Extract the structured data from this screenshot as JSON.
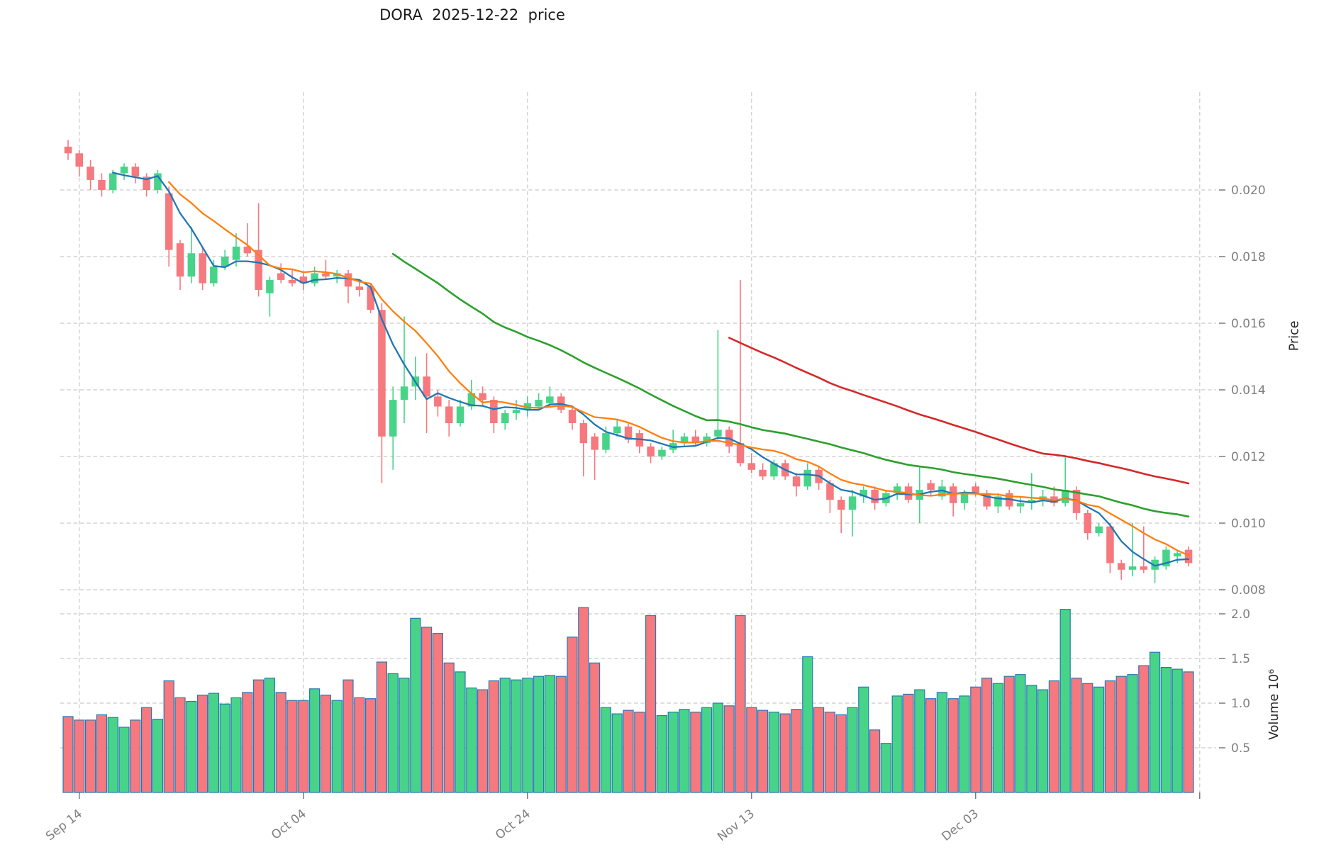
{
  "title": "DORA  2025-12-22  price",
  "chart_data": {
    "type": "candlestick",
    "title": "DORA  2025-12-22  price",
    "grid": true,
    "legend": null,
    "price_axis": {
      "label": "Price",
      "side": "right",
      "ticks": [
        "0.020",
        "0.018",
        "0.016",
        "0.014",
        "0.012",
        "0.010",
        "0.008"
      ],
      "tick_values": [
        0.02,
        0.018,
        0.016,
        0.014,
        0.012,
        0.01,
        0.008
      ]
    },
    "volume_axis": {
      "label": "Volume",
      "scale": "10⁶",
      "side": "right",
      "ticks": [
        "2.0",
        "1.5",
        "1.0",
        "0.5"
      ],
      "tick_values": [
        2.0,
        1.5,
        1.0,
        0.5
      ]
    },
    "x_axis": {
      "tick_labels": [
        "Sep 14",
        "Oct 04",
        "Oct 24",
        "Nov 13",
        "Dec 03"
      ],
      "tick_indices": [
        1,
        21,
        41,
        61,
        81
      ],
      "extra_unlabeled_tick_index": 101
    },
    "moving_averages": [
      {
        "name": "MA5",
        "window": 5,
        "color": "#1f77b4",
        "width": 2.3
      },
      {
        "name": "MA10",
        "window": 10,
        "color": "#ff7f0e",
        "width": 2.3
      },
      {
        "name": "MA30",
        "window": 30,
        "color": "#2ca02c",
        "width": 2.6
      },
      {
        "name": "MA60",
        "window": 60,
        "color": "#d62728",
        "width": 2.6
      }
    ],
    "colors": {
      "up": "#47d489",
      "down": "#f5797e",
      "volume_edge": "#2878b4",
      "grid": "#c9c9c9",
      "tick_label": "#7f7f7f",
      "tick_mark": "#666666",
      "title": "#1a1a1a"
    },
    "candles": [
      [
        "Sep 13",
        0.0213,
        0.0215,
        0.0209,
        0.0211,
        0.85
      ],
      [
        "Sep 14",
        0.0211,
        0.0212,
        0.0204,
        0.0207,
        0.81
      ],
      [
        "Sep 15",
        0.0207,
        0.0209,
        0.02,
        0.0203,
        0.81
      ],
      [
        "Sep 16",
        0.0203,
        0.0205,
        0.0198,
        0.02,
        0.87
      ],
      [
        "Sep 17",
        0.02,
        0.0206,
        0.0199,
        0.0205,
        0.84
      ],
      [
        "Sep 18",
        0.0205,
        0.0208,
        0.0203,
        0.0207,
        0.73
      ],
      [
        "Sep 19",
        0.0207,
        0.0208,
        0.0202,
        0.0204,
        0.81
      ],
      [
        "Sep 20",
        0.0204,
        0.0205,
        0.0198,
        0.02,
        0.95
      ],
      [
        "Sep 21",
        0.02,
        0.0206,
        0.0199,
        0.0205,
        0.82
      ],
      [
        "Sep 22",
        0.0199,
        0.0201,
        0.0177,
        0.0182,
        1.25
      ],
      [
        "Sep 23",
        0.0184,
        0.0185,
        0.017,
        0.0174,
        1.06
      ],
      [
        "Sep 24",
        0.0174,
        0.0189,
        0.0172,
        0.0181,
        1.02
      ],
      [
        "Sep 25",
        0.0181,
        0.0183,
        0.017,
        0.0172,
        1.09
      ],
      [
        "Sep 26",
        0.0172,
        0.0179,
        0.0171,
        0.0177,
        1.11
      ],
      [
        "Sep 27",
        0.0177,
        0.0182,
        0.0176,
        0.018,
        0.99
      ],
      [
        "Sep 28",
        0.0179,
        0.0187,
        0.0177,
        0.0183,
        1.06
      ],
      [
        "Sep 29",
        0.0183,
        0.019,
        0.018,
        0.0181,
        1.12
      ],
      [
        "Sep 30",
        0.0182,
        0.0196,
        0.0168,
        0.017,
        1.26
      ],
      [
        "Oct 01",
        0.0169,
        0.0174,
        0.0162,
        0.0173,
        1.28
      ],
      [
        "Oct 02",
        0.0175,
        0.0178,
        0.0172,
        0.0173,
        1.12
      ],
      [
        "Oct 03",
        0.0173,
        0.0176,
        0.0171,
        0.0172,
        1.03
      ],
      [
        "Oct 04",
        0.0174,
        0.0175,
        0.017,
        0.0172,
        1.03
      ],
      [
        "Oct 05",
        0.0172,
        0.0177,
        0.0171,
        0.0175,
        1.16
      ],
      [
        "Oct 06",
        0.0175,
        0.0179,
        0.0173,
        0.0174,
        1.09
      ],
      [
        "Oct 07",
        0.0174,
        0.0176,
        0.0172,
        0.0175,
        1.03
      ],
      [
        "Oct 08",
        0.0175,
        0.0176,
        0.0166,
        0.0171,
        1.26
      ],
      [
        "Oct 09",
        0.0171,
        0.0173,
        0.0168,
        0.017,
        1.06
      ],
      [
        "Oct 10",
        0.0171,
        0.0172,
        0.0163,
        0.0164,
        1.05
      ],
      [
        "Oct 11",
        0.0164,
        0.0166,
        0.0112,
        0.0126,
        1.46
      ],
      [
        "Oct 12",
        0.0126,
        0.0141,
        0.0116,
        0.0137,
        1.33
      ],
      [
        "Oct 13",
        0.0137,
        0.0162,
        0.013,
        0.0141,
        1.28
      ],
      [
        "Oct 14",
        0.0141,
        0.015,
        0.0137,
        0.0144,
        1.95
      ],
      [
        "Oct 15",
        0.0144,
        0.0151,
        0.0127,
        0.0138,
        1.85
      ],
      [
        "Oct 16",
        0.0138,
        0.014,
        0.0132,
        0.0135,
        1.78
      ],
      [
        "Oct 17",
        0.0135,
        0.0137,
        0.0126,
        0.013,
        1.45
      ],
      [
        "Oct 18",
        0.013,
        0.0137,
        0.0129,
        0.0135,
        1.35
      ],
      [
        "Oct 19",
        0.0135,
        0.0143,
        0.0134,
        0.0139,
        1.17
      ],
      [
        "Oct 20",
        0.0139,
        0.0141,
        0.0135,
        0.0137,
        1.15
      ],
      [
        "Oct 21",
        0.0137,
        0.0138,
        0.0127,
        0.013,
        1.25
      ],
      [
        "Oct 22",
        0.013,
        0.0134,
        0.0128,
        0.0133,
        1.28
      ],
      [
        "Oct 23",
        0.0133,
        0.0137,
        0.0131,
        0.0134,
        1.26
      ],
      [
        "Oct 24",
        0.0134,
        0.0138,
        0.0132,
        0.0136,
        1.28
      ],
      [
        "Oct 25",
        0.0135,
        0.0139,
        0.0134,
        0.0137,
        1.3
      ],
      [
        "Oct 26",
        0.0136,
        0.0141,
        0.0135,
        0.0138,
        1.31
      ],
      [
        "Oct 27",
        0.0138,
        0.0139,
        0.0133,
        0.0134,
        1.3
      ],
      [
        "Oct 28",
        0.0134,
        0.0135,
        0.0128,
        0.013,
        1.74
      ],
      [
        "Oct 29",
        0.013,
        0.0131,
        0.0114,
        0.0124,
        2.07
      ],
      [
        "Oct 30",
        0.0126,
        0.0127,
        0.0113,
        0.0122,
        1.45
      ],
      [
        "Oct 31",
        0.0122,
        0.0129,
        0.0121,
        0.0127,
        0.95
      ],
      [
        "Nov 01",
        0.0127,
        0.0131,
        0.0126,
        0.0129,
        0.88
      ],
      [
        "Nov 02",
        0.0129,
        0.013,
        0.0124,
        0.0125,
        0.92
      ],
      [
        "Nov 03",
        0.0127,
        0.0128,
        0.0121,
        0.0123,
        0.9
      ],
      [
        "Nov 04",
        0.0123,
        0.0124,
        0.0118,
        0.012,
        1.98
      ],
      [
        "Nov 05",
        0.012,
        0.0123,
        0.0119,
        0.0122,
        0.86
      ],
      [
        "Nov 06",
        0.0122,
        0.0128,
        0.0121,
        0.0124,
        0.9
      ],
      [
        "Nov 07",
        0.0124,
        0.0127,
        0.0123,
        0.0126,
        0.93
      ],
      [
        "Nov 08",
        0.0126,
        0.0128,
        0.0123,
        0.0124,
        0.9
      ],
      [
        "Nov 09",
        0.0124,
        0.0127,
        0.0123,
        0.0126,
        0.95
      ],
      [
        "Nov 10",
        0.0126,
        0.0158,
        0.0125,
        0.0128,
        1.0
      ],
      [
        "Nov 11",
        0.0128,
        0.0129,
        0.0121,
        0.0123,
        0.97
      ],
      [
        "Nov 12",
        0.0124,
        0.0173,
        0.0117,
        0.0118,
        1.98
      ],
      [
        "Nov 13",
        0.0118,
        0.0121,
        0.0115,
        0.0116,
        0.95
      ],
      [
        "Nov 14",
        0.0116,
        0.0118,
        0.0113,
        0.0114,
        0.92
      ],
      [
        "Nov 15",
        0.0114,
        0.0119,
        0.0113,
        0.0118,
        0.9
      ],
      [
        "Nov 16",
        0.0118,
        0.0119,
        0.0113,
        0.0114,
        0.88
      ],
      [
        "Nov 17",
        0.0114,
        0.0115,
        0.0108,
        0.0111,
        0.93
      ],
      [
        "Nov 18",
        0.0111,
        0.0118,
        0.011,
        0.0116,
        1.52
      ],
      [
        "Nov 19",
        0.0116,
        0.0117,
        0.011,
        0.0112,
        0.95
      ],
      [
        "Nov 20",
        0.0112,
        0.0113,
        0.0103,
        0.0107,
        0.9
      ],
      [
        "Nov 21",
        0.0107,
        0.0108,
        0.0097,
        0.0104,
        0.87
      ],
      [
        "Nov 22",
        0.0104,
        0.011,
        0.0096,
        0.0108,
        0.95
      ],
      [
        "Nov 23",
        0.0108,
        0.0111,
        0.0106,
        0.011,
        1.18
      ],
      [
        "Nov 24",
        0.011,
        0.0111,
        0.0104,
        0.0106,
        0.7
      ],
      [
        "Nov 25",
        0.0106,
        0.011,
        0.0105,
        0.0109,
        0.55
      ],
      [
        "Nov 26",
        0.0109,
        0.0112,
        0.0107,
        0.0111,
        1.08
      ],
      [
        "Nov 27",
        0.0111,
        0.0112,
        0.0106,
        0.0107,
        1.1
      ],
      [
        "Nov 28",
        0.0107,
        0.0117,
        0.01,
        0.011,
        1.15
      ],
      [
        "Nov 29",
        0.0112,
        0.0113,
        0.0108,
        0.011,
        1.05
      ],
      [
        "Nov 30",
        0.0108,
        0.0113,
        0.0107,
        0.0111,
        1.12
      ],
      [
        "Dec 01",
        0.0111,
        0.0112,
        0.0102,
        0.0106,
        1.05
      ],
      [
        "Dec 02",
        0.0106,
        0.011,
        0.0104,
        0.0109,
        1.08
      ],
      [
        "Dec 03",
        0.0111,
        0.0112,
        0.0108,
        0.0109,
        1.18
      ],
      [
        "Dec 04",
        0.0109,
        0.011,
        0.0104,
        0.0105,
        1.28
      ],
      [
        "Dec 05",
        0.0105,
        0.0109,
        0.0103,
        0.0108,
        1.22
      ],
      [
        "Dec 06",
        0.0109,
        0.011,
        0.0104,
        0.0105,
        1.3
      ],
      [
        "Dec 07",
        0.0105,
        0.0108,
        0.0103,
        0.0106,
        1.32
      ],
      [
        "Dec 08",
        0.0106,
        0.0115,
        0.0104,
        0.0107,
        1.2
      ],
      [
        "Dec 09",
        0.0107,
        0.011,
        0.0105,
        0.0108,
        1.15
      ],
      [
        "Dec 10",
        0.0108,
        0.0111,
        0.0105,
        0.0106,
        1.25
      ],
      [
        "Dec 11",
        0.0106,
        0.012,
        0.0105,
        0.011,
        2.05
      ],
      [
        "Dec 12",
        0.011,
        0.0111,
        0.0101,
        0.0103,
        1.28
      ],
      [
        "Dec 13",
        0.0103,
        0.0104,
        0.0095,
        0.0097,
        1.22
      ],
      [
        "Dec 14",
        0.0097,
        0.01,
        0.0096,
        0.0099,
        1.18
      ],
      [
        "Dec 15",
        0.0099,
        0.01,
        0.0085,
        0.0088,
        1.25
      ],
      [
        "Dec 16",
        0.0088,
        0.0089,
        0.0083,
        0.0086,
        1.3
      ],
      [
        "Dec 17",
        0.0086,
        0.01,
        0.0084,
        0.0087,
        1.32
      ],
      [
        "Dec 18",
        0.0087,
        0.0099,
        0.0085,
        0.0086,
        1.42
      ],
      [
        "Dec 19",
        0.0086,
        0.009,
        0.0082,
        0.0089,
        1.57
      ],
      [
        "Dec 20",
        0.0087,
        0.0093,
        0.0086,
        0.0092,
        1.4
      ],
      [
        "Dec 21",
        0.009,
        0.0092,
        0.0088,
        0.0091,
        1.38
      ],
      [
        "Dec 22",
        0.0092,
        0.0093,
        0.0087,
        0.0088,
        1.35
      ]
    ]
  }
}
